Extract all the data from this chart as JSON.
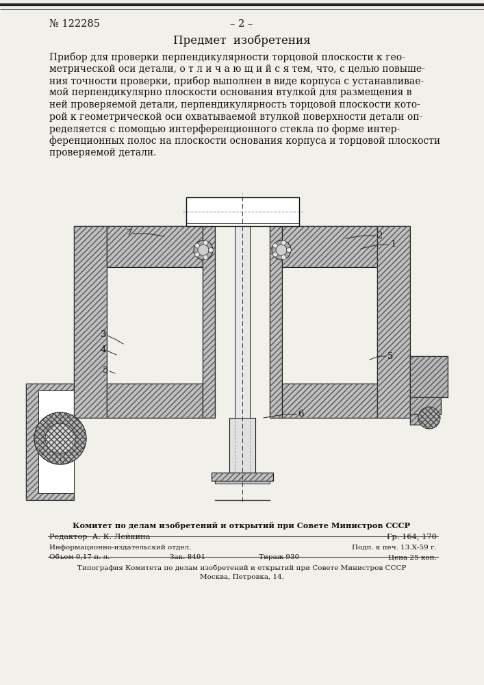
{
  "page_color": "#f2f0eb",
  "patent_number": "№ 122285",
  "page_number": "– 2 –",
  "section_title": "Предмет  изобретения",
  "body_lines": [
    "Прибор для проверки перпендикулярности торцовой плоскости к гео-",
    "метрической оси детали, о т л и ч а ю щ и й с я тем, что, с целью повыше-",
    "ния точности проверки, прибор выполнен в виде корпуса с устанавливае-",
    "мой перпендикулярно плоскости основания втулкой для размещения в",
    "ней проверяемой детали, перпендикулярность торцовой плоскости кото-",
    "рой к геометрической оси охватываемой втулкой поверхности детали оп-",
    "ределяется с помощью интерференционного стекла по форме интер-",
    "ференционных полос на плоскости основания корпуса и торцовой плоскости",
    "проверяемой детали."
  ],
  "footer_bold": "Комитет по делам изобретений и открытий при Совете Министров СССР",
  "footer_editor": "Редактор  А. К. Лейкина",
  "footer_gr": "Гр. 164, 170",
  "footer_i1l": "Информационно-издательский отдел.",
  "footer_i1r": "Подп. к печ. 13.Х-59 г.",
  "footer_i2a": "Объем 0,17 п. л.",
  "footer_i2b": "Зак. 8491",
  "footer_i2c": "Тираж 930",
  "footer_i2r": "Цена 25 коп.",
  "footer_typo1": "Типография Комитета по делам изобретений и открытий при Совете Министров СССР",
  "footer_typo2": "Москва, Петровка, 14.",
  "lc": "#111111",
  "tc": "#111111",
  "hc": "#777777"
}
